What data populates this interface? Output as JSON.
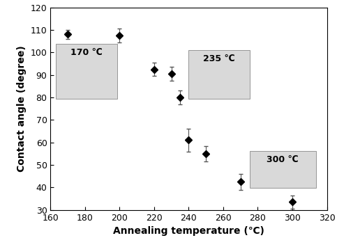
{
  "chart_data": {
    "type": "scatter",
    "x_label": "Annealing temperature (℃)",
    "y_label": "Contact angle (degree)",
    "x": [
      170,
      200,
      220,
      230,
      235,
      240,
      250,
      270,
      300
    ],
    "values": [
      108,
      107.5,
      92.5,
      90.5,
      80,
      61,
      55,
      42.5,
      33.5
    ],
    "errors": [
      2,
      3,
      3,
      3,
      3,
      5,
      3.5,
      3.5,
      3
    ],
    "color": "#000000",
    "marker": "D",
    "xlim": [
      160,
      320
    ],
    "xticks": [
      160,
      180,
      200,
      220,
      240,
      260,
      280,
      300,
      320
    ],
    "ylim": [
      30,
      120
    ],
    "yticks": [
      30,
      40,
      50,
      60,
      70,
      80,
      90,
      100,
      110,
      120
    ],
    "annotations": [
      "170 ℃",
      "235 ℃",
      "300 ℃"
    ]
  }
}
